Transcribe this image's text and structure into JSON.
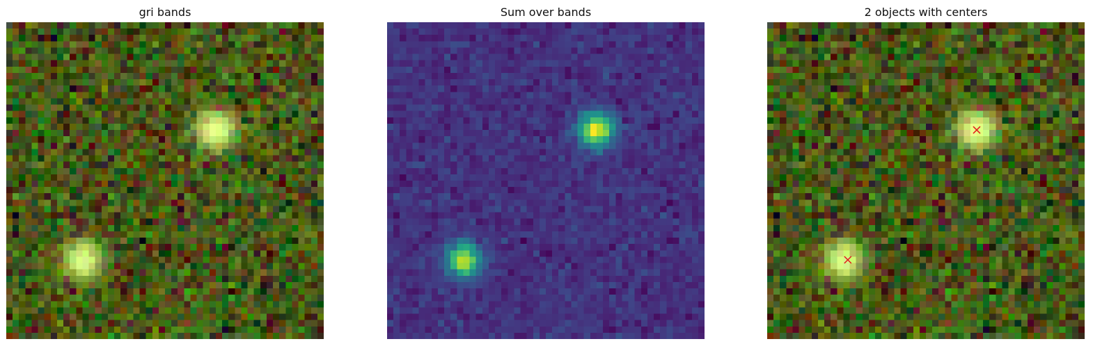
{
  "chart_data": [
    {
      "type": "heatmap",
      "title": "gri bands",
      "colormap": "rgb composite (g, r, i)",
      "grid_size": [
        50,
        50
      ],
      "axes": "off",
      "sources": [
        {
          "x": 32.5,
          "y": 16.5,
          "peak": 1.0
        },
        {
          "x": 11.5,
          "y": 37.0,
          "peak": 0.95
        }
      ]
    },
    {
      "type": "heatmap",
      "title": "Sum over bands",
      "colormap": "viridis",
      "grid_size": [
        50,
        50
      ],
      "axes": "off",
      "sources": [
        {
          "x": 32.5,
          "y": 16.5,
          "peak": 1.0
        },
        {
          "x": 11.5,
          "y": 37.0,
          "peak": 0.95
        }
      ]
    },
    {
      "type": "heatmap",
      "title": "2 objects with centers",
      "colormap": "rgb composite (g, r, i)",
      "grid_size": [
        50,
        50
      ],
      "axes": "off",
      "marker": "x",
      "marker_color": "#e31a1c",
      "centers": [
        {
          "x": 32.5,
          "y": 16.5
        },
        {
          "x": 12.2,
          "y": 37.0
        }
      ]
    }
  ]
}
